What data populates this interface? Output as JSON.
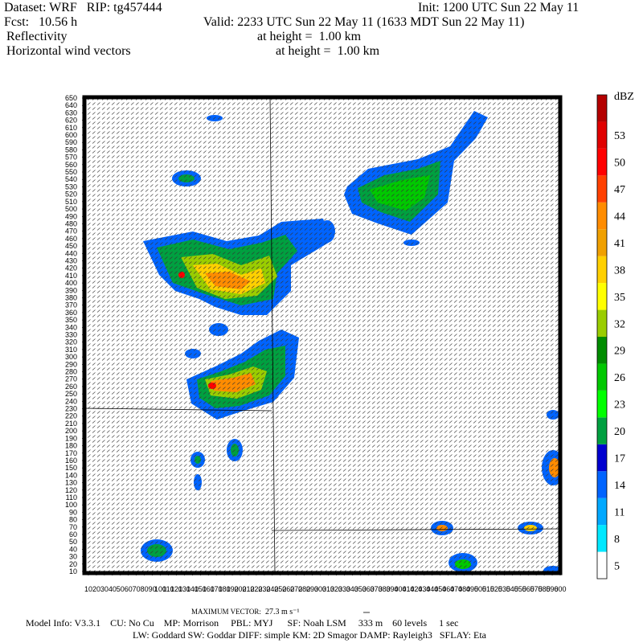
{
  "header": {
    "line1_left": "Dataset: WRF   RIP: tg457444",
    "line1_right": "Init: 1200 UTC Sun 22 May 11",
    "line2_left": "Fcst:   10.56 h",
    "line2_right": "Valid: 2233 UTC Sun 22 May 11 (1633 MDT Sun 22 May 11)",
    "line3_left": "Reflectivity",
    "line3_right": "at height =  1.00 km",
    "line4_left": "Horizontal wind vectors",
    "line4_right": "at height =  1.00 km"
  },
  "colorbar": {
    "unit": "dBZ",
    "ticks": [
      5,
      8,
      11,
      14,
      17,
      20,
      23,
      26,
      29,
      32,
      35,
      38,
      41,
      44,
      47,
      50,
      53
    ],
    "colors": [
      "#ffffff",
      "#00e8ff",
      "#00a8ff",
      "#0064ff",
      "#0000d0",
      "#00a040",
      "#00ff00",
      "#00c800",
      "#008c00",
      "#9acd00",
      "#ffff00",
      "#ffd000",
      "#f0a000",
      "#ff8c00",
      "#ff4000",
      "#ff0000",
      "#e00000",
      "#b40000"
    ]
  },
  "y_ticks": [
    10,
    20,
    30,
    40,
    50,
    60,
    70,
    80,
    90,
    100,
    110,
    120,
    130,
    140,
    150,
    160,
    170,
    180,
    190,
    200,
    210,
    220,
    230,
    240,
    250,
    260,
    270,
    280,
    290,
    300,
    310,
    320,
    330,
    340,
    350,
    360,
    370,
    380,
    390,
    400,
    410,
    420,
    430,
    440,
    450,
    460,
    470,
    480,
    490,
    500,
    510,
    520,
    530,
    540,
    550,
    560,
    570,
    580,
    590,
    600,
    610,
    620,
    630,
    640,
    650
  ],
  "x_ticks": [
    10,
    20,
    30,
    40,
    50,
    60,
    70,
    80,
    90,
    100,
    110,
    120,
    130,
    140,
    150,
    160,
    170,
    180,
    190,
    200,
    210,
    220,
    230,
    240,
    250,
    260,
    270,
    280,
    290,
    300,
    310,
    320,
    330,
    340,
    350,
    360,
    370,
    380,
    390,
    400,
    410,
    420,
    430,
    440,
    450,
    460,
    470,
    480,
    490,
    500,
    510,
    520,
    530,
    540,
    550,
    560,
    570,
    580,
    590,
    600
  ],
  "footer": {
    "max_vector_label": "MAXIMUM VECTOR:",
    "max_vector_value": "27.3 m s⁻¹",
    "model_info": "Model Info: V3.3.1    CU: No Cu    MP: Morrison     PBL: MYJ      SF: Noah LSM     333 m    60 levels     1 sec",
    "physics": "LW: Goddard SW: Goddar DIFF: simple KM: 2D Smagor DAMP: Rayleigh3   SFLAY: Eta"
  }
}
